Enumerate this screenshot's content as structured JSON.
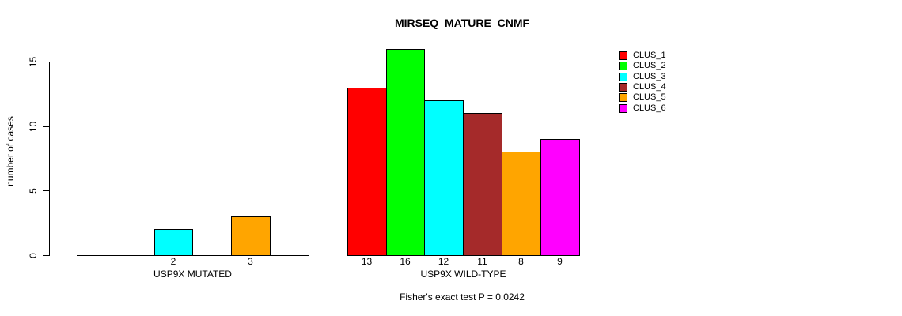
{
  "chart_data": {
    "type": "bar",
    "title": "MIRSEQ_MATURE_CNMF",
    "ylabel": "number of cases",
    "xlabel": "",
    "yticks": [
      0,
      5,
      10,
      15
    ],
    "ylim": [
      0,
      16
    ],
    "grid": false,
    "legend_position": "right",
    "series_names": [
      "CLUS_1",
      "CLUS_2",
      "CLUS_3",
      "CLUS_4",
      "CLUS_5",
      "CLUS_6"
    ],
    "colors": [
      "#ff0000",
      "#00ff00",
      "#00ffff",
      "#a52a2a",
      "#ffa500",
      "#ff00ff"
    ],
    "groups": [
      {
        "label": "USP9X MUTATED",
        "values": [
          0,
          0,
          2,
          0,
          3,
          0
        ],
        "bar_labels": [
          "",
          "",
          "2",
          "",
          "3",
          ""
        ]
      },
      {
        "label": "USP9X WILD-TYPE",
        "values": [
          13,
          16,
          12,
          11,
          8,
          9
        ],
        "bar_labels": [
          "13",
          "16",
          "12",
          "11",
          "8",
          "9"
        ]
      }
    ],
    "annotation": "Fisher's exact test P = 0.0242",
    "axis_color": "#000000",
    "background": "#ffffff"
  }
}
